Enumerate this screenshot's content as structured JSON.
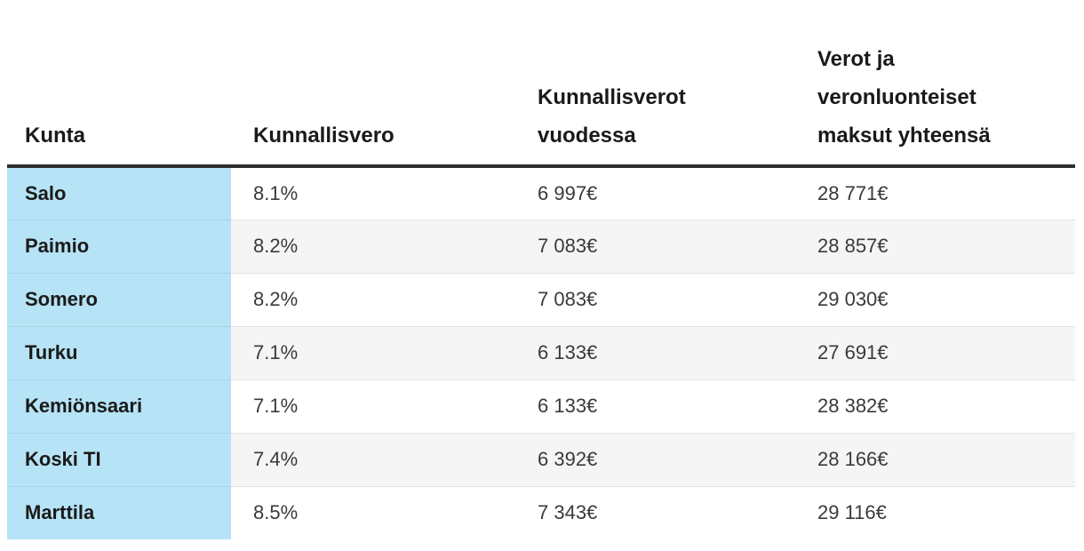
{
  "chart_data": {
    "type": "table",
    "title": "",
    "columns": [
      "Kunta",
      "Kunnallisvero",
      "Kunnallisverot vuodessa",
      "Verot ja veronluonteiset maksut yhteensä"
    ],
    "rows": [
      [
        "Salo",
        "8.1%",
        "6 997€",
        "28 771€"
      ],
      [
        "Paimio",
        "8.2%",
        "7 083€",
        "28 857€"
      ],
      [
        "Somero",
        "8.2%",
        "7 083€",
        "29 030€"
      ],
      [
        "Turku",
        "7.1%",
        "6 133€",
        "27 691€"
      ],
      [
        "Kemiönsaari",
        "7.1%",
        "6 133€",
        "28 382€"
      ],
      [
        "Koski TI",
        "7.4%",
        "6 392€",
        "28 166€"
      ],
      [
        "Marttila",
        "8.5%",
        "7 343€",
        "29 116€"
      ]
    ],
    "layout_hints": {
      "first_column_highlighted": true,
      "zebra_striping": true,
      "header_alignment": "bottom-left"
    }
  },
  "colors": {
    "municipality_column_bg": "#b6e3f5",
    "zebra_stripe_bg": "#f5f5f5",
    "header_border": "#2e2e2e",
    "row_divider": "#e3e3e3",
    "text": "#1a1a1a"
  }
}
